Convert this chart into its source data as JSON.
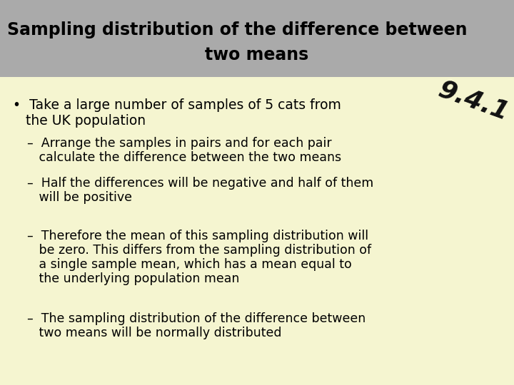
{
  "title_line1": "Sampling distribution of the difference between",
  "title_line2": "two means",
  "title_bg_color": "#aaaaaa",
  "title_font_color": "#000000",
  "body_bg_color": "#f5f5d0",
  "watermark": "9.4.1",
  "bullet_main_line1": "•  Take a large number of samples of 5 cats from",
  "bullet_main_line2": "   the UK population",
  "sub_bullets": [
    "–  Arrange the samples in pairs and for each pair\n   calculate the difference between the two means",
    "–  Half the differences will be negative and half of them\n   will be positive",
    "–  Therefore the mean of this sampling distribution will\n   be zero. This differs from the sampling distribution of\n   a single sample mean, which has a mean equal to\n   the underlying population mean",
    "–  The sampling distribution of the difference between\n   two means will be normally distributed"
  ],
  "title_fontsize": 17,
  "bullet_fontsize": 13.5,
  "sub_bullet_fontsize": 12.5,
  "watermark_fontsize": 26
}
